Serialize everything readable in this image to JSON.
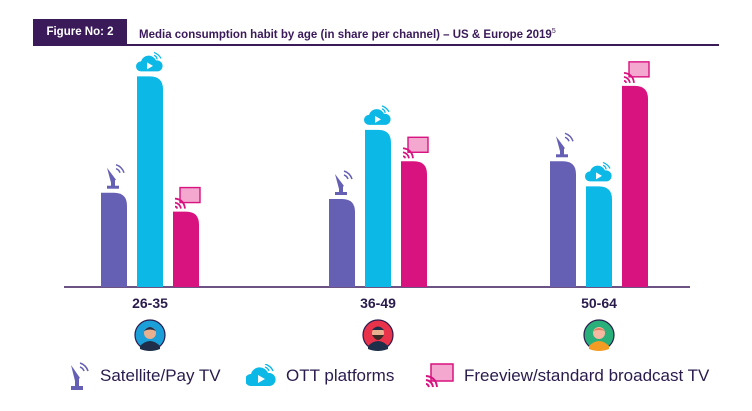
{
  "header": {
    "figure_label": "Figure No: 2",
    "title": "Media consumption habit by age (in share per channel) – US & Europe 2019",
    "footnote": "5"
  },
  "colors": {
    "satellite": "#6660b4",
    "ott": "#0bb8e6",
    "freeview": "#d8127f",
    "header_bg": "#3b1a5a",
    "text": "#2a1b4d"
  },
  "chart_data": {
    "type": "bar",
    "categories": [
      "26-35",
      "36-49",
      "50-64"
    ],
    "series": [
      {
        "name": "Satellite/Pay TV",
        "values": [
          30,
          28,
          40
        ],
        "icon": "satellite-dish-icon"
      },
      {
        "name": "OTT platforms",
        "values": [
          67,
          50,
          32
        ],
        "icon": "cloud-play-icon"
      },
      {
        "name": "Freeview/standard broadcast TV",
        "values": [
          24,
          40,
          64
        ],
        "icon": "broadcast-tv-icon"
      }
    ],
    "ylim": [
      0,
      70
    ],
    "grid": false,
    "legend": "bottom",
    "category_avatars": [
      "young-man-avatar-icon",
      "bearded-man-avatar-icon",
      "older-person-avatar-icon"
    ]
  },
  "legend": {
    "items": [
      {
        "label": "Satellite/Pay TV",
        "icon": "satellite-dish-icon"
      },
      {
        "label": "OTT platforms",
        "icon": "cloud-play-icon"
      },
      {
        "label": "Freeview/standard broadcast TV",
        "icon": "broadcast-tv-icon"
      }
    ]
  }
}
